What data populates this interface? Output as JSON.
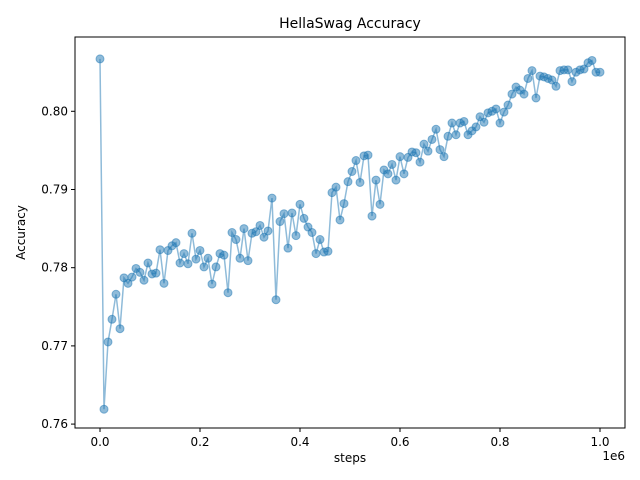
{
  "chart_data": {
    "type": "line",
    "title": "HellaSwag Accuracy",
    "xlabel": "steps",
    "ylabel": "Accuracy",
    "x_offset_label": "1e6",
    "xlim": [
      -0.05,
      1.05
    ],
    "ylim": [
      0.7595,
      0.8095
    ],
    "x_ticks": [
      0.0,
      0.2,
      0.4,
      0.6,
      0.8,
      1.0
    ],
    "x_tick_labels": [
      "0.0",
      "0.2",
      "0.4",
      "0.6",
      "0.8",
      "1.0"
    ],
    "y_ticks": [
      0.76,
      0.77,
      0.78,
      0.79,
      0.8
    ],
    "y_tick_labels": [
      "0.76",
      "0.77",
      "0.78",
      "0.79",
      "0.80"
    ],
    "grid": false,
    "color": "#1f77b4",
    "series": [
      {
        "x": [
          0.0,
          0.008,
          0.016,
          0.024,
          0.032,
          0.04,
          0.048,
          0.056,
          0.064,
          0.072,
          0.08,
          0.088,
          0.096,
          0.104,
          0.112,
          0.12,
          0.128,
          0.136,
          0.144,
          0.152,
          0.16,
          0.168,
          0.176,
          0.184,
          0.192,
          0.2,
          0.208,
          0.216,
          0.224,
          0.232,
          0.24,
          0.248,
          0.256,
          0.264,
          0.272,
          0.28,
          0.288,
          0.296,
          0.304,
          0.312,
          0.32,
          0.328,
          0.336,
          0.344,
          0.352,
          0.36,
          0.368,
          0.376,
          0.384,
          0.392,
          0.4,
          0.408,
          0.416,
          0.424,
          0.432,
          0.44,
          0.448,
          0.456,
          0.464,
          0.472,
          0.48,
          0.488,
          0.496,
          0.504,
          0.512,
          0.52,
          0.528,
          0.536,
          0.544,
          0.552,
          0.56,
          0.568,
          0.576,
          0.584,
          0.592,
          0.6,
          0.608,
          0.616,
          0.624,
          0.632,
          0.64,
          0.648,
          0.656,
          0.664,
          0.672,
          0.68,
          0.688,
          0.696,
          0.704,
          0.712,
          0.72,
          0.728,
          0.736,
          0.744,
          0.752,
          0.76,
          0.768,
          0.776,
          0.784,
          0.792,
          0.8,
          0.808,
          0.816,
          0.824,
          0.832,
          0.84,
          0.848,
          0.856,
          0.864,
          0.872,
          0.88,
          0.888,
          0.896,
          0.904,
          0.912,
          0.92,
          0.928,
          0.936,
          0.944,
          0.952,
          0.96,
          0.968,
          0.976,
          0.984,
          0.992,
          1.0
        ],
        "y": [
          0.8067,
          0.7619,
          0.7705,
          0.7734,
          0.7766,
          0.7722,
          0.7787,
          0.778,
          0.7788,
          0.7799,
          0.7794,
          0.7784,
          0.7806,
          0.7792,
          0.7793,
          0.7823,
          0.778,
          0.7822,
          0.7828,
          0.7832,
          0.7806,
          0.7818,
          0.7805,
          0.7844,
          0.7811,
          0.7822,
          0.7801,
          0.7812,
          0.7779,
          0.7801,
          0.7818,
          0.7816,
          0.7768,
          0.7845,
          0.7836,
          0.7812,
          0.785,
          0.7809,
          0.7844,
          0.7846,
          0.7854,
          0.7839,
          0.7847,
          0.7889,
          0.7759,
          0.7859,
          0.7869,
          0.7825,
          0.787,
          0.7841,
          0.7881,
          0.7863,
          0.7852,
          0.7845,
          0.7818,
          0.7836,
          0.782,
          0.7821,
          0.7896,
          0.7903,
          0.7861,
          0.7882,
          0.791,
          0.7923,
          0.7937,
          0.7909,
          0.7943,
          0.7944,
          0.7866,
          0.7912,
          0.7881,
          0.7925,
          0.792,
          0.7932,
          0.7912,
          0.7942,
          0.792,
          0.7941,
          0.7948,
          0.7947,
          0.7935,
          0.7958,
          0.7949,
          0.7964,
          0.7977,
          0.7951,
          0.7942,
          0.7968,
          0.7985,
          0.797,
          0.7985,
          0.7987,
          0.797,
          0.7975,
          0.798,
          0.7993,
          0.7986,
          0.7998,
          0.8,
          0.8003,
          0.7985,
          0.7999,
          0.8008,
          0.8022,
          0.8031,
          0.8027,
          0.8022,
          0.8042,
          0.8052,
          0.8017,
          0.8045,
          0.8044,
          0.8042,
          0.804,
          0.8032,
          0.8052,
          0.8053,
          0.8053,
          0.8038,
          0.805,
          0.8053,
          0.8054,
          0.8062,
          0.8065,
          0.805,
          0.805
        ]
      }
    ]
  }
}
